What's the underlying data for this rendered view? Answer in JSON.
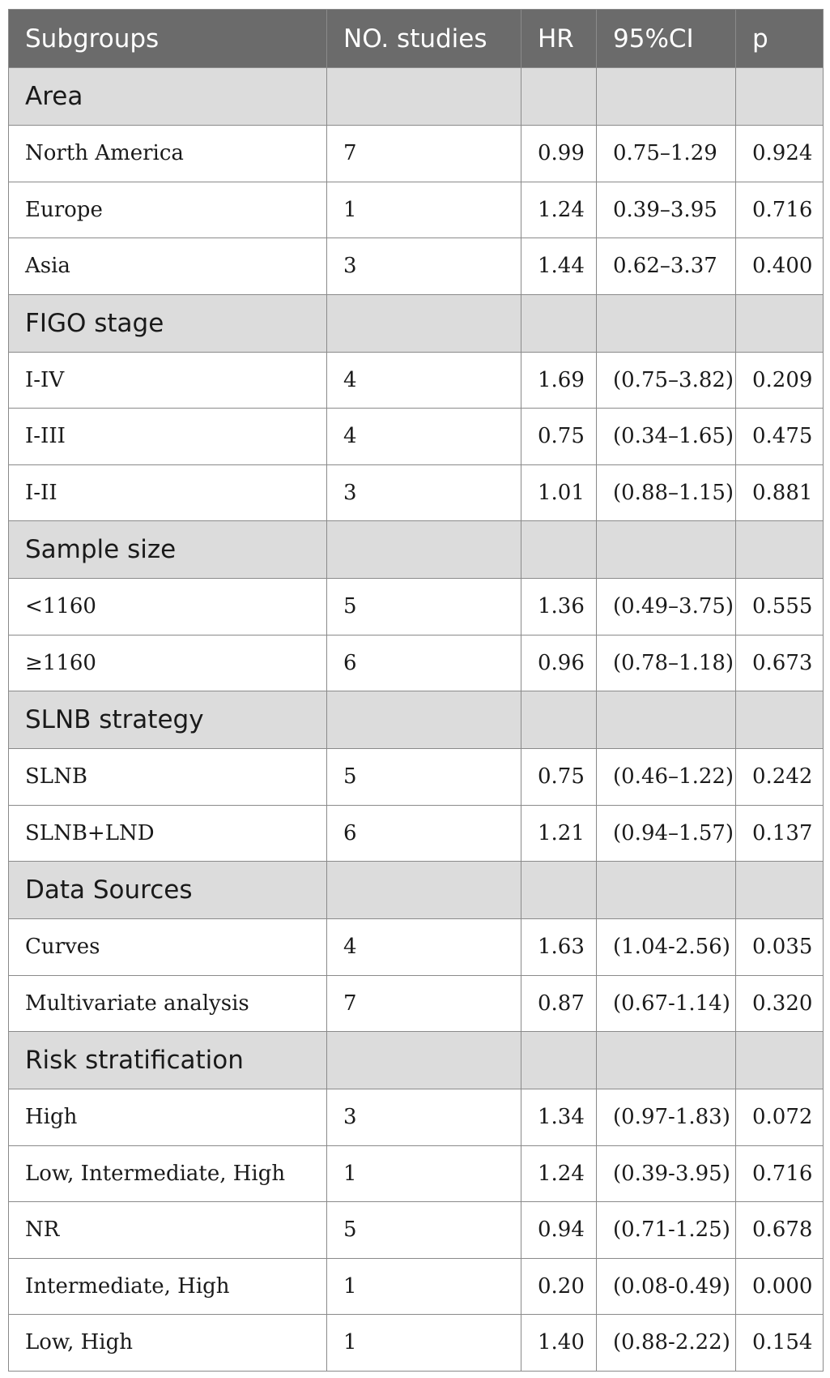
{
  "table": {
    "headers": [
      "Subgroups",
      "NO. studies",
      "HR",
      "95%CI",
      "p"
    ],
    "groups": [
      {
        "name": "Area",
        "rows": [
          [
            "North America",
            "7",
            "0.99",
            "0.75–1.29",
            "0.924"
          ],
          [
            "Europe",
            "1",
            "1.24",
            "0.39–3.95",
            "0.716"
          ],
          [
            "Asia",
            "3",
            "1.44",
            "0.62–3.37",
            "0.400"
          ]
        ]
      },
      {
        "name": "FIGO stage",
        "rows": [
          [
            "I-IV",
            "4",
            "1.69",
            "(0.75–3.82)",
            "0.209"
          ],
          [
            "I-III",
            "4",
            "0.75",
            "(0.34–1.65)",
            "0.475"
          ],
          [
            "I-II",
            "3",
            "1.01",
            "(0.88–1.15)",
            "0.881"
          ]
        ]
      },
      {
        "name": "Sample size",
        "rows": [
          [
            "<1160",
            "5",
            "1.36",
            "(0.49–3.75)",
            "0.555"
          ],
          [
            "≥1160",
            "6",
            "0.96",
            "(0.78–1.18)",
            "0.673"
          ]
        ]
      },
      {
        "name": "SLNB strategy",
        "rows": [
          [
            "SLNB",
            "5",
            "0.75",
            "(0.46–1.22)",
            "0.242"
          ],
          [
            "SLNB+LND",
            "6",
            "1.21",
            "(0.94–1.57)",
            "0.137"
          ]
        ]
      },
      {
        "name": "Data Sources",
        "rows": [
          [
            "Curves",
            "4",
            "1.63",
            "(1.04-2.56)",
            "0.035"
          ],
          [
            "Multivariate analysis",
            "7",
            "0.87",
            "(0.67-1.14)",
            "0.320"
          ]
        ]
      },
      {
        "name": "Risk stratification",
        "rows": [
          [
            "High",
            "3",
            "1.34",
            "(0.97-1.83)",
            "0.072"
          ],
          [
            "Low, Intermediate, High",
            "1",
            "1.24",
            "(0.39-3.95)",
            "0.716"
          ],
          [
            "NR",
            "5",
            "0.94",
            "(0.71-1.25)",
            "0.678"
          ],
          [
            "Intermediate, High",
            "1",
            "0.20",
            "(0.08-0.49)",
            "0.000"
          ],
          [
            "Low, High",
            "1",
            "1.40",
            "(0.88-2.22)",
            "0.154"
          ]
        ]
      }
    ]
  }
}
